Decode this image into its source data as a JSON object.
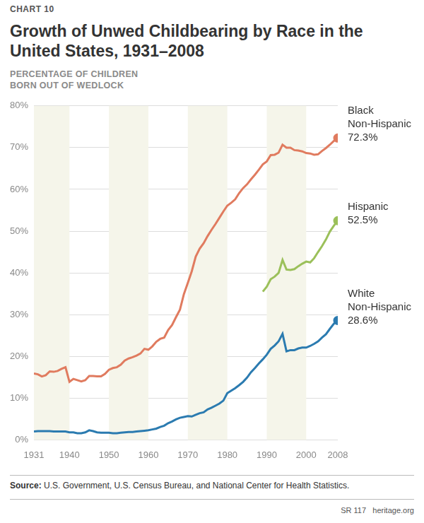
{
  "chart_data": {
    "type": "line",
    "chart_label": "CHART 10",
    "title": "Growth of Unwed Childbearing by Race in the United States, 1931–2008",
    "y_label": "PERCENTAGE OF CHILDREN BORN OUT OF WEDLOCK",
    "source_label": "Source:",
    "source": "U.S. Government, U.S. Census Bureau, and National Center for Health Statistics.",
    "report": "SR 117",
    "site": "heritage.org",
    "x": [
      1931,
      1932,
      1933,
      1934,
      1935,
      1936,
      1937,
      1938,
      1939,
      1940,
      1941,
      1942,
      1943,
      1944,
      1945,
      1946,
      1947,
      1948,
      1949,
      1950,
      1951,
      1952,
      1953,
      1954,
      1955,
      1956,
      1957,
      1958,
      1959,
      1960,
      1961,
      1962,
      1963,
      1964,
      1965,
      1966,
      1967,
      1968,
      1969,
      1970,
      1971,
      1972,
      1973,
      1974,
      1975,
      1976,
      1977,
      1978,
      1979,
      1980,
      1981,
      1982,
      1983,
      1984,
      1985,
      1986,
      1987,
      1988,
      1989,
      1990,
      1991,
      1992,
      1993,
      1994,
      1995,
      1996,
      1997,
      1998,
      1999,
      2000,
      2001,
      2002,
      2003,
      2004,
      2005,
      2006,
      2007,
      2008
    ],
    "xlim": [
      1931,
      2008
    ],
    "xticks": [
      1931,
      1940,
      1950,
      1960,
      1970,
      1980,
      1990,
      2000,
      2008
    ],
    "ylim": [
      0,
      80
    ],
    "yticks": [
      {
        "value": 0,
        "label": "0%"
      },
      {
        "value": 10,
        "label": "10%"
      },
      {
        "value": 20,
        "label": "20%"
      },
      {
        "value": 30,
        "label": "30%"
      },
      {
        "value": 40,
        "label": "40%"
      },
      {
        "value": 50,
        "label": "50%"
      },
      {
        "value": 60,
        "label": "60%"
      },
      {
        "value": 70,
        "label": "70%"
      },
      {
        "value": 80,
        "label": "80%"
      }
    ],
    "grid": true,
    "series": [
      {
        "name": "Black Non-Hispanic",
        "color": "#e07b5f",
        "marker": "circle",
        "values": [
          15.9,
          15.7,
          15.2,
          15.5,
          16.4,
          16.3,
          16.5,
          17.0,
          17.4,
          13.9,
          14.6,
          14.3,
          14.0,
          14.3,
          15.3,
          15.3,
          15.2,
          15.2,
          15.8,
          16.8,
          17.2,
          17.4,
          18.0,
          19.0,
          19.5,
          19.8,
          20.2,
          20.7,
          21.8,
          21.6,
          22.4,
          23.5,
          24.2,
          24.5,
          26.3,
          27.5,
          29.4,
          31.2,
          34.9,
          37.6,
          40.4,
          43.9,
          45.8,
          47.1,
          48.8,
          50.3,
          51.7,
          53.2,
          54.7,
          56.1,
          56.8,
          57.6,
          59.1,
          60.3,
          61.2,
          62.4,
          63.5,
          64.7,
          66.0,
          66.7,
          68.2,
          68.3,
          68.8,
          70.7,
          70.0,
          70.0,
          69.4,
          69.3,
          69.1,
          68.7,
          68.6,
          68.3,
          68.4,
          69.2,
          69.9,
          70.7,
          71.6,
          72.3
        ],
        "value_labels": [
          null,
          null,
          null,
          null,
          null,
          null,
          null,
          null,
          null,
          null,
          null,
          null,
          null,
          null,
          null,
          null,
          null,
          null,
          null,
          null,
          null,
          null,
          null,
          null,
          null,
          null,
          null,
          null,
          null,
          null,
          null,
          null,
          null,
          null,
          null,
          null,
          null,
          null,
          null,
          null,
          null,
          null,
          null,
          null,
          null,
          null,
          null,
          null,
          null,
          null,
          null,
          null,
          null,
          null,
          null,
          null,
          null,
          null,
          null,
          null,
          null,
          null,
          null,
          null,
          null,
          null,
          null,
          null,
          null,
          null,
          null,
          null,
          null,
          null,
          null,
          null,
          null,
          "72.3%"
        ]
      },
      {
        "name": "Hispanic",
        "color": "#9bc05a",
        "marker": "circle",
        "values": [
          null,
          null,
          null,
          null,
          null,
          null,
          null,
          null,
          null,
          null,
          null,
          null,
          null,
          null,
          null,
          null,
          null,
          null,
          null,
          null,
          null,
          null,
          null,
          null,
          null,
          null,
          null,
          null,
          null,
          null,
          null,
          null,
          null,
          null,
          null,
          null,
          null,
          null,
          null,
          null,
          null,
          null,
          null,
          null,
          null,
          null,
          null,
          null,
          null,
          null,
          null,
          null,
          null,
          null,
          null,
          null,
          null,
          null,
          35.5,
          36.7,
          38.5,
          39.1,
          40.0,
          43.1,
          40.8,
          40.7,
          40.9,
          41.6,
          42.2,
          42.7,
          42.5,
          43.5,
          45.0,
          46.4,
          48.0,
          49.9,
          51.3,
          52.5
        ],
        "value_labels": [
          null,
          null,
          null,
          null,
          null,
          null,
          null,
          null,
          null,
          null,
          null,
          null,
          null,
          null,
          null,
          null,
          null,
          null,
          null,
          null,
          null,
          null,
          null,
          null,
          null,
          null,
          null,
          null,
          null,
          null,
          null,
          null,
          null,
          null,
          null,
          null,
          null,
          null,
          null,
          null,
          null,
          null,
          null,
          null,
          null,
          null,
          null,
          null,
          null,
          null,
          null,
          null,
          null,
          null,
          null,
          null,
          null,
          null,
          null,
          null,
          null,
          null,
          null,
          null,
          null,
          null,
          null,
          null,
          null,
          null,
          null,
          null,
          null,
          null,
          null,
          null,
          null,
          "52.5%"
        ]
      },
      {
        "name": "White Non-Hispanic",
        "color": "#2b7bb0",
        "marker": "circle",
        "values": [
          2.0,
          2.1,
          2.1,
          2.1,
          2.1,
          2.0,
          2.0,
          2.0,
          2.0,
          1.8,
          1.8,
          1.6,
          1.6,
          1.8,
          2.3,
          2.1,
          1.8,
          1.7,
          1.7,
          1.7,
          1.6,
          1.6,
          1.7,
          1.8,
          1.9,
          1.9,
          2.0,
          2.1,
          2.2,
          2.3,
          2.5,
          2.7,
          3.1,
          3.4,
          4.0,
          4.4,
          4.9,
          5.3,
          5.5,
          5.7,
          5.6,
          6.0,
          6.4,
          6.6,
          7.3,
          7.7,
          8.2,
          8.7,
          9.4,
          11.2,
          11.8,
          12.4,
          13.1,
          13.9,
          14.9,
          16.2,
          17.2,
          18.3,
          19.3,
          20.4,
          21.8,
          22.6,
          23.6,
          25.4,
          21.2,
          21.5,
          21.5,
          21.9,
          22.1,
          22.1,
          22.5,
          23.0,
          23.6,
          24.5,
          25.3,
          26.6,
          27.8,
          28.6
        ],
        "value_labels": [
          null,
          null,
          null,
          null,
          null,
          null,
          null,
          null,
          null,
          null,
          null,
          null,
          null,
          null,
          null,
          null,
          null,
          null,
          null,
          null,
          null,
          null,
          null,
          null,
          null,
          null,
          null,
          null,
          null,
          null,
          null,
          null,
          null,
          null,
          null,
          null,
          null,
          null,
          null,
          null,
          null,
          null,
          null,
          null,
          null,
          null,
          null,
          null,
          null,
          null,
          null,
          null,
          null,
          null,
          null,
          null,
          null,
          null,
          null,
          null,
          null,
          null,
          null,
          null,
          null,
          null,
          null,
          null,
          null,
          null,
          null,
          null,
          null,
          null,
          null,
          null,
          null,
          "28.6%"
        ]
      }
    ]
  }
}
